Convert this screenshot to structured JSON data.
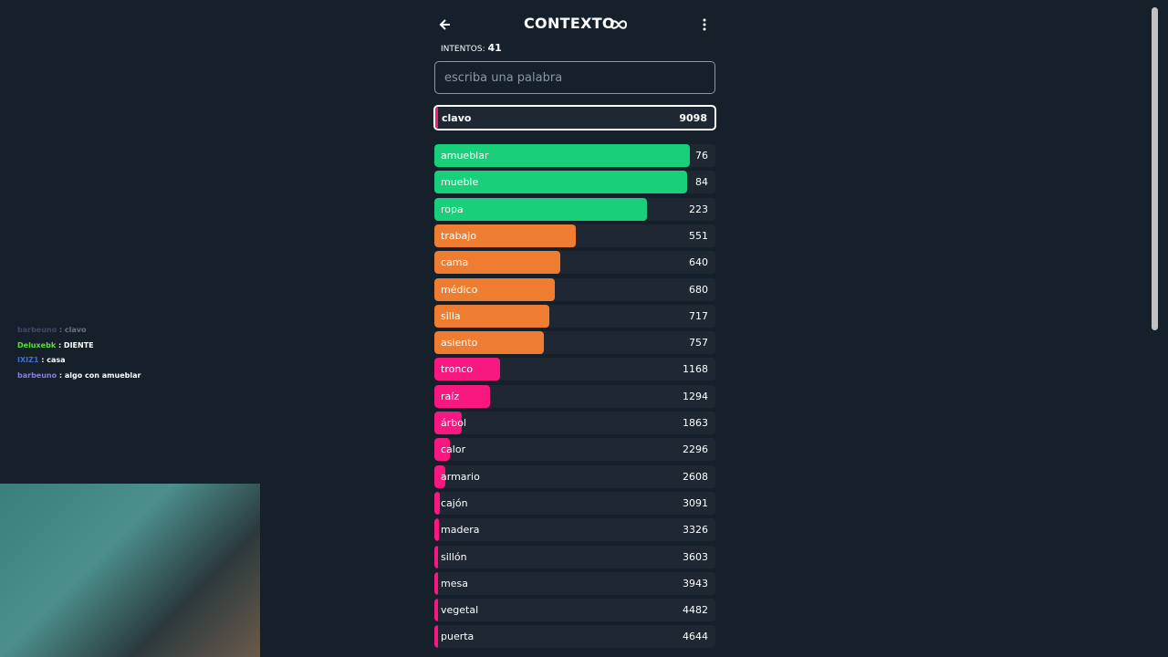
{
  "header": {
    "title": "CONTEXTO",
    "attempts_label": "INTENTOS:",
    "attempts": 41
  },
  "input": {
    "placeholder": "escriba una palabra"
  },
  "current": {
    "word": "clavo",
    "rank": 9098
  },
  "guesses": [
    {
      "word": "amueblar",
      "rank": 76
    },
    {
      "word": "mueble",
      "rank": 84
    },
    {
      "word": "ropa",
      "rank": 223
    },
    {
      "word": "trabajo",
      "rank": 551
    },
    {
      "word": "cama",
      "rank": 640
    },
    {
      "word": "médico",
      "rank": 680
    },
    {
      "word": "silla",
      "rank": 717
    },
    {
      "word": "asiento",
      "rank": 757
    },
    {
      "word": "tronco",
      "rank": 1168
    },
    {
      "word": "raíz",
      "rank": 1294
    },
    {
      "word": "árbol",
      "rank": 1863
    },
    {
      "word": "calor",
      "rank": 2296
    },
    {
      "word": "armario",
      "rank": 2608
    },
    {
      "word": "cajón",
      "rank": 3091
    },
    {
      "word": "madera",
      "rank": 3326
    },
    {
      "word": "sillón",
      "rank": 3603
    },
    {
      "word": "mesa",
      "rank": 3943
    },
    {
      "word": "vegetal",
      "rank": 4482
    },
    {
      "word": "puerta",
      "rank": 4644
    }
  ],
  "chat": [
    {
      "user": "barbeuno",
      "text": ": clavo",
      "color": "#3a4a66",
      "text_color": "#6b7380"
    },
    {
      "user": "Deluxebk",
      "text": ": DIENTE",
      "color": "#5dde3c",
      "text_color": "#ffffff"
    },
    {
      "user": "IXIZ1",
      "text": ": casa",
      "color": "#3b6fd6",
      "text_color": "#ffffff"
    },
    {
      "user": "barbeuno",
      "text": ": algo con amueblar",
      "color": "#8a7be8",
      "text_color": "#ffffff"
    }
  ]
}
